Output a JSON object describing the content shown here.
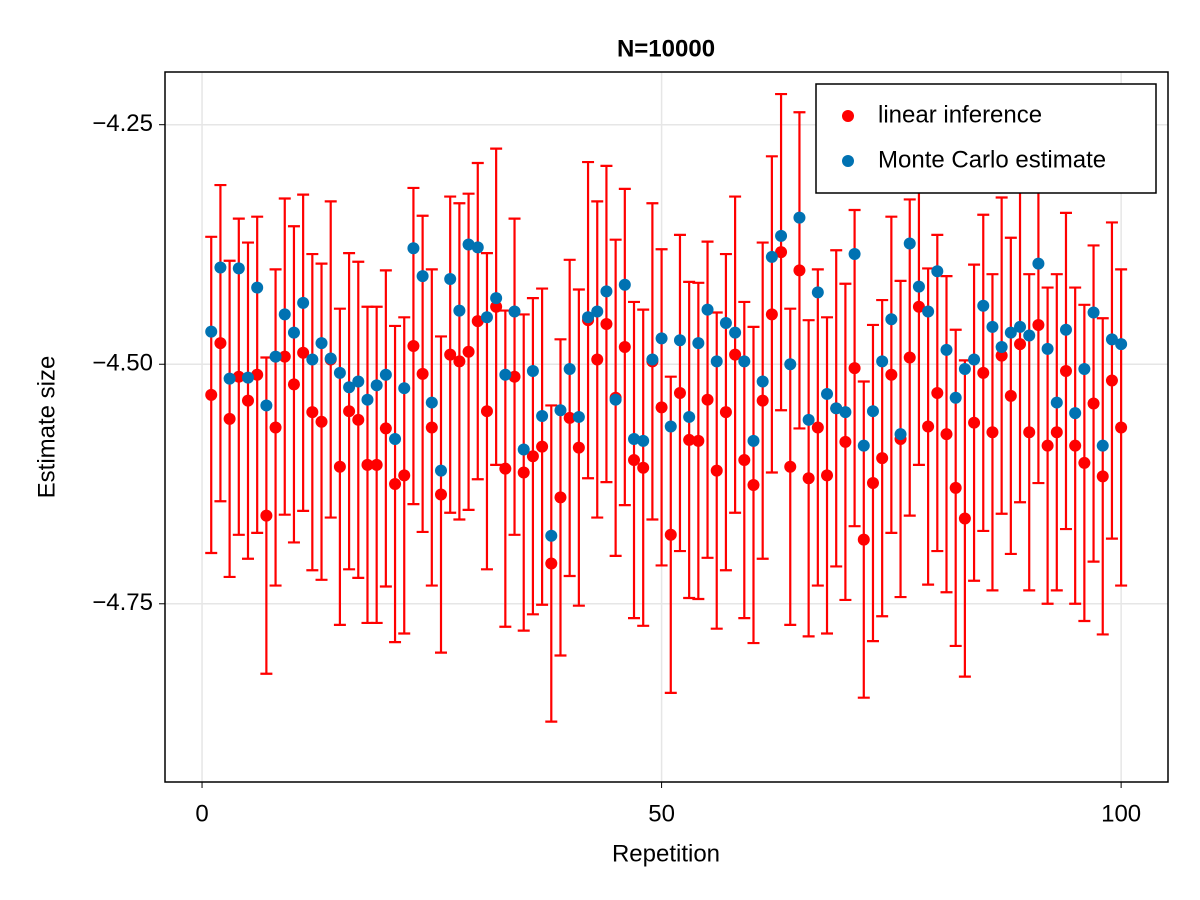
{
  "chart_data": {
    "type": "errorbar-scatter",
    "title": "N=10000",
    "xlabel": "Repetition",
    "ylabel": "Estimate size",
    "x": [
      1,
      2,
      3,
      4,
      5,
      6,
      7,
      8,
      9,
      10,
      11,
      12,
      13,
      14,
      15,
      16,
      17,
      18,
      19,
      20,
      21,
      22,
      23,
      24,
      25,
      26,
      27,
      28,
      29,
      30,
      31,
      32,
      33,
      34,
      35,
      36,
      37,
      38,
      39,
      40,
      41,
      42,
      43,
      44,
      45,
      46,
      47,
      48,
      49,
      50,
      51,
      52,
      53,
      54,
      55,
      56,
      57,
      58,
      59,
      60,
      61,
      62,
      63,
      64,
      65,
      66,
      67,
      68,
      69,
      70,
      71,
      72,
      73,
      74,
      75,
      76,
      77,
      78,
      79,
      80,
      81,
      82,
      83,
      84,
      85,
      86,
      87,
      88,
      89,
      90,
      91,
      92,
      93,
      94,
      95,
      96,
      97,
      98,
      99,
      100
    ],
    "series": [
      {
        "name": "linear inference",
        "color": "#ff0000",
        "error": 0.165,
        "values": [
          -4.532,
          -4.478,
          -4.557,
          -4.513,
          -4.538,
          -4.511,
          -4.658,
          -4.566,
          -4.492,
          -4.521,
          -4.488,
          -4.55,
          -4.56,
          -4.495,
          -4.607,
          -4.549,
          -4.558,
          -4.605,
          -4.605,
          -4.567,
          -4.625,
          -4.616,
          -4.481,
          -4.51,
          -4.566,
          -4.636,
          -4.49,
          -4.497,
          -4.487,
          -4.455,
          -4.549,
          -4.44,
          -4.609,
          -4.513,
          -4.613,
          -4.596,
          -4.586,
          -4.708,
          -4.639,
          -4.556,
          -4.587,
          -4.454,
          -4.495,
          -4.458,
          -4.535,
          -4.482,
          -4.6,
          -4.608,
          -4.497,
          -4.545,
          -4.678,
          -4.53,
          -4.579,
          -4.58,
          -4.537,
          -4.611,
          -4.55,
          -4.49,
          -4.6,
          -4.626,
          -4.538,
          -4.448,
          -4.383,
          -4.607,
          -4.402,
          -4.619,
          -4.566,
          -4.616,
          -4.546,
          -4.581,
          -4.504,
          -4.683,
          -4.624,
          -4.598,
          -4.511,
          -4.578,
          -4.493,
          -4.44,
          -4.565,
          -4.53,
          -4.573,
          -4.629,
          -4.661,
          -4.561,
          -4.509,
          -4.571,
          -4.491,
          -4.533,
          -4.479,
          -4.571,
          -4.459,
          -4.585,
          -4.571,
          -4.507,
          -4.585,
          -4.603,
          -4.541,
          -4.617,
          -4.517,
          -4.566
        ]
      },
      {
        "name": "Monte Carlo estimate",
        "color": "#0072b2",
        "values": [
          -4.466,
          -4.399,
          -4.515,
          -4.4,
          -4.514,
          -4.42,
          -4.543,
          -4.492,
          -4.448,
          -4.467,
          -4.436,
          -4.495,
          -4.478,
          -4.494,
          -4.509,
          -4.524,
          -4.518,
          -4.537,
          -4.522,
          -4.511,
          -4.578,
          -4.525,
          -4.379,
          -4.408,
          -4.54,
          -4.611,
          -4.411,
          -4.444,
          -4.375,
          -4.378,
          -4.451,
          -4.431,
          -4.511,
          -4.445,
          -4.589,
          -4.507,
          -4.554,
          -4.679,
          -4.548,
          -4.505,
          -4.555,
          -4.451,
          -4.445,
          -4.424,
          -4.537,
          -4.417,
          -4.578,
          -4.58,
          -4.495,
          -4.473,
          -4.565,
          -4.475,
          -4.555,
          -4.478,
          -4.443,
          -4.497,
          -4.457,
          -4.467,
          -4.497,
          -4.58,
          -4.518,
          -4.388,
          -4.366,
          -4.5,
          -4.347,
          -4.558,
          -4.425,
          -4.531,
          -4.546,
          -4.55,
          -4.385,
          -4.585,
          -4.549,
          -4.497,
          -4.453,
          -4.573,
          -4.374,
          -4.419,
          -4.445,
          -4.403,
          -4.485,
          -4.535,
          -4.505,
          -4.495,
          -4.439,
          -4.461,
          -4.482,
          -4.467,
          -4.461,
          -4.47,
          -4.395,
          -4.484,
          -4.54,
          -4.464,
          -4.551,
          -4.505,
          -4.446,
          -4.585,
          -4.474,
          -4.479
        ]
      }
    ],
    "xlim": [
      -4.03,
      105.1
    ],
    "ylim": [
      -4.936,
      -4.195
    ],
    "xticks": [
      0,
      50,
      100
    ],
    "yticks": [
      {
        "value": -4.75,
        "label": "−4.75"
      },
      {
        "value": -4.5,
        "label": "−4.50"
      },
      {
        "value": -4.25,
        "label": "−4.25"
      }
    ],
    "grid": true,
    "legend": "top-right"
  }
}
